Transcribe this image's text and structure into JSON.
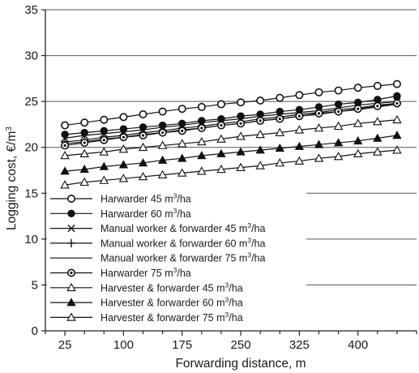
{
  "chart_data": {
    "type": "line",
    "xlabel": "Forwarding distance, m",
    "ylabel": "Logging cost, €/m",
    "ylabel_sup": "3",
    "xlim": [
      0,
      475
    ],
    "ylim": [
      0,
      35
    ],
    "x_ticks": [
      25,
      100,
      175,
      250,
      325,
      400
    ],
    "y_ticks": [
      0,
      5,
      10,
      15,
      20,
      25,
      30,
      35
    ],
    "grid": "horizontal",
    "legend_position": "lower-left",
    "x": [
      25,
      50,
      75,
      100,
      125,
      150,
      175,
      200,
      225,
      250,
      275,
      300,
      325,
      350,
      375,
      400,
      425,
      450
    ],
    "series": [
      {
        "name_parts": [
          "Harwarder 45 m",
          "3",
          "/ha"
        ],
        "marker": "open-circle",
        "values": [
          22.4,
          22.7,
          23.0,
          23.3,
          23.6,
          23.9,
          24.2,
          24.4,
          24.7,
          24.9,
          25.1,
          25.4,
          25.7,
          26.0,
          26.2,
          26.5,
          26.7,
          26.9
        ]
      },
      {
        "name_parts": [
          "Harwarder 60 m",
          "3",
          "/ha"
        ],
        "marker": "filled-circle",
        "values": [
          21.4,
          21.6,
          21.8,
          22.0,
          22.2,
          22.4,
          22.6,
          22.9,
          23.1,
          23.4,
          23.6,
          23.9,
          24.1,
          24.4,
          24.7,
          24.9,
          25.2,
          25.6
        ]
      },
      {
        "name_parts": [
          "Manual worker & forwarder 45 m",
          "3",
          "/ha"
        ],
        "marker": "x",
        "values": [
          21.0,
          21.3,
          21.5,
          21.7,
          21.9,
          22.2,
          22.4,
          22.7,
          22.9,
          23.1,
          23.4,
          23.6,
          23.8,
          24.0,
          24.3,
          24.6,
          24.8,
          25.0
        ]
      },
      {
        "name_parts": [
          "Manual worker & forwarder 60 m",
          "3",
          "/ha"
        ],
        "marker": "plus",
        "values": [
          20.6,
          20.8,
          21.1,
          21.3,
          21.6,
          21.8,
          22.1,
          22.3,
          22.6,
          22.8,
          23.1,
          23.3,
          23.6,
          23.8,
          24.1,
          24.3,
          24.6,
          24.8
        ]
      },
      {
        "name_parts": [
          "Manual worker & forwarder 75 m",
          "3",
          "/ha"
        ],
        "marker": "none",
        "values": [
          20.4,
          20.6,
          20.9,
          21.1,
          21.4,
          21.6,
          21.9,
          22.1,
          22.4,
          22.6,
          22.9,
          23.1,
          23.4,
          23.6,
          23.9,
          24.1,
          24.4,
          24.7
        ]
      },
      {
        "name_parts": [
          "Harwarder 75 m",
          "3",
          "/ha"
        ],
        "marker": "dot-circle",
        "values": [
          20.2,
          20.5,
          20.8,
          21.1,
          21.3,
          21.6,
          21.8,
          22.1,
          22.4,
          22.6,
          22.9,
          23.1,
          23.4,
          23.7,
          23.9,
          24.2,
          24.5,
          24.8
        ]
      },
      {
        "name_parts": [
          "Harvester & forwarder 45 m",
          "3",
          "/ha"
        ],
        "marker": "open-triangle",
        "values": [
          19.1,
          19.3,
          19.5,
          19.8,
          20.0,
          20.2,
          20.4,
          20.6,
          20.9,
          21.2,
          21.4,
          21.6,
          21.9,
          22.1,
          22.3,
          22.6,
          22.8,
          23.0
        ]
      },
      {
        "name_parts": [
          "Harvester & forwarder 60 m",
          "3",
          "/ha"
        ],
        "marker": "filled-triangle",
        "values": [
          17.4,
          17.6,
          17.9,
          18.1,
          18.3,
          18.6,
          18.8,
          19.1,
          19.3,
          19.5,
          19.7,
          19.9,
          20.1,
          20.3,
          20.5,
          20.7,
          21.0,
          21.3
        ]
      },
      {
        "name_parts": [
          "Harvester & forwarder 75 m",
          "3",
          "/ha"
        ],
        "marker": "open-triangle",
        "values": [
          15.9,
          16.2,
          16.4,
          16.6,
          16.8,
          17.0,
          17.2,
          17.4,
          17.6,
          17.8,
          18.0,
          18.3,
          18.5,
          18.8,
          19.0,
          19.3,
          19.5,
          19.7
        ]
      }
    ]
  }
}
